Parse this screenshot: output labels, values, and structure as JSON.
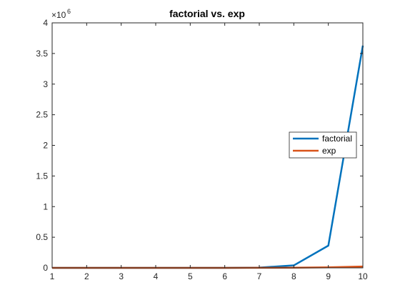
{
  "chart_data": {
    "type": "line",
    "title": "factorial vs. exp",
    "xlabel": "",
    "ylabel": "",
    "x": [
      1,
      2,
      3,
      4,
      5,
      6,
      7,
      8,
      9,
      10
    ],
    "xlim": [
      1,
      10
    ],
    "ylim": [
      0,
      4000000
    ],
    "x_ticks": [
      1,
      2,
      3,
      4,
      5,
      6,
      7,
      8,
      9,
      10
    ],
    "y_ticks": [
      0,
      0.5,
      1,
      1.5,
      2,
      2.5,
      3,
      3.5,
      4
    ],
    "y_tick_labels": [
      "0",
      "0.5",
      "1",
      "1.5",
      "2",
      "2.5",
      "3",
      "3.5",
      "4"
    ],
    "y_exponent": {
      "base": "×10",
      "power": "6"
    },
    "grid": false,
    "legend_position": "right",
    "series": [
      {
        "name": "factorial",
        "color": "#0072BD",
        "values": [
          1,
          2,
          6,
          24,
          120,
          720,
          5040,
          40320,
          362880,
          3628800
        ]
      },
      {
        "name": "exp",
        "color": "#D95319",
        "values": [
          2.718,
          7.389,
          20.09,
          54.6,
          148.4,
          403.4,
          1096.6,
          2981.0,
          8103.1,
          22026.5
        ]
      }
    ]
  }
}
